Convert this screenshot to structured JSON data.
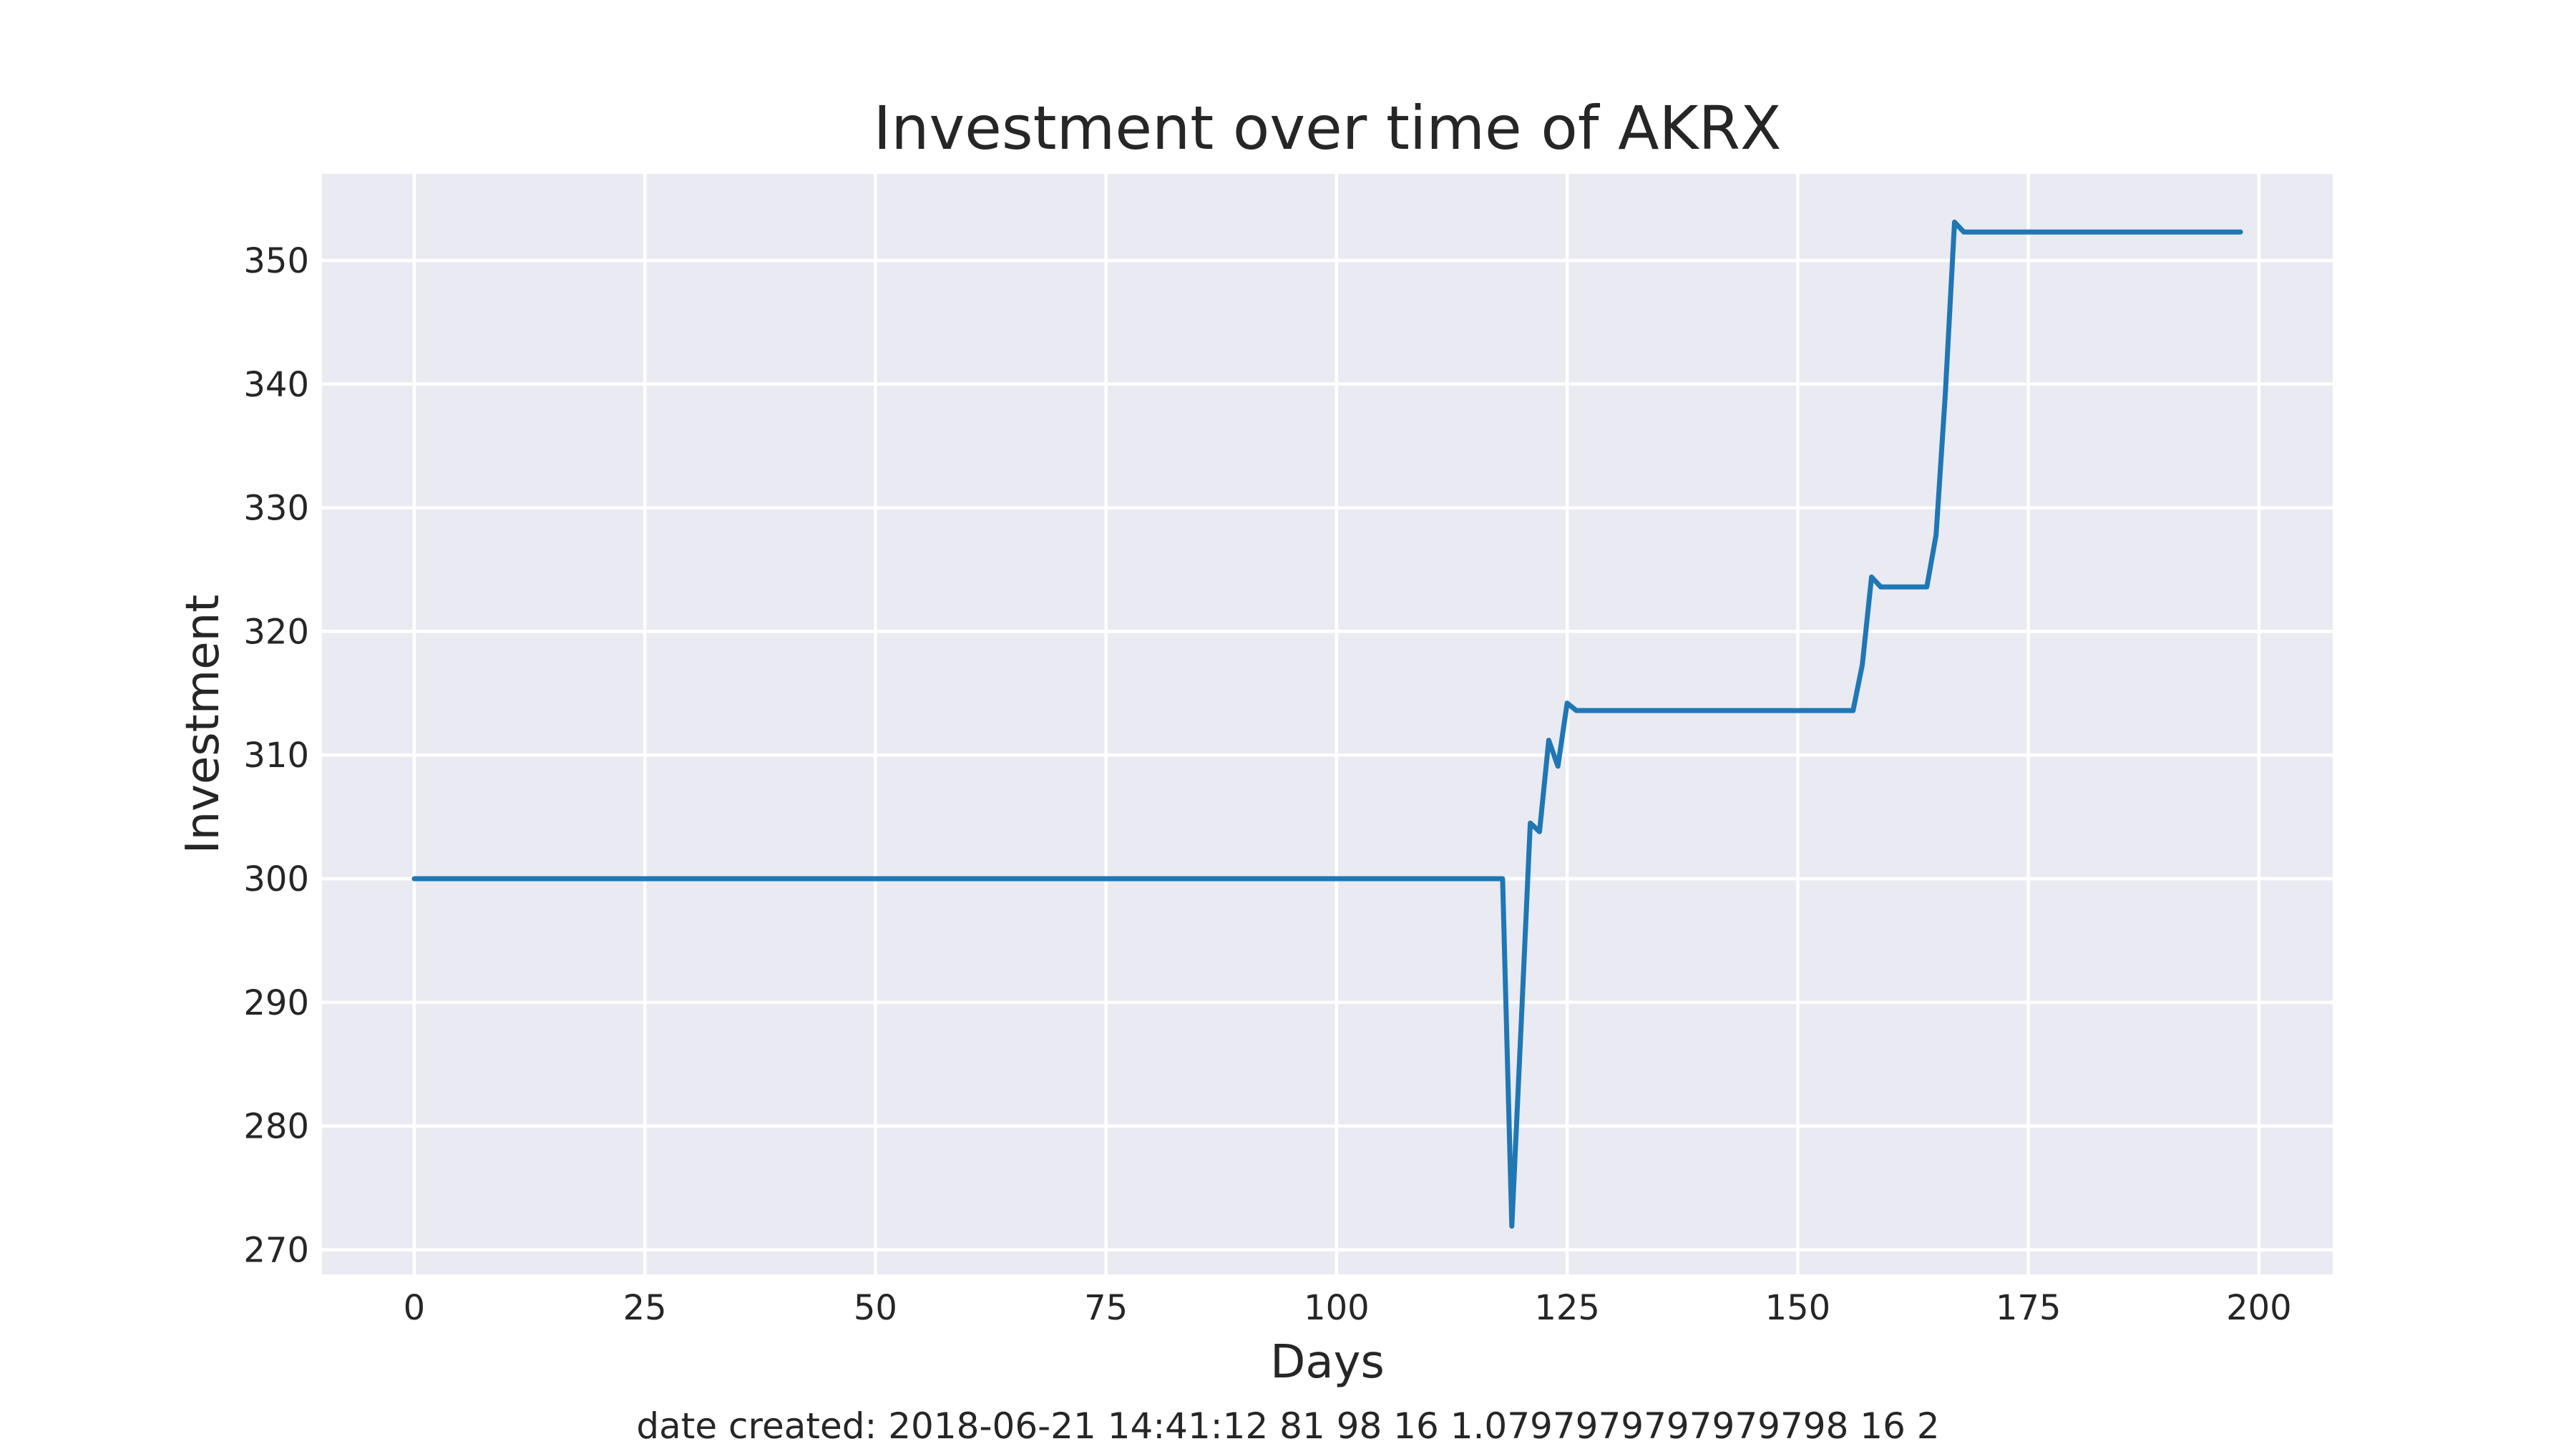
{
  "chart_data": {
    "type": "line",
    "title": "Investment over time of AKRX",
    "xlabel": "Days",
    "ylabel": "Investment",
    "xlim": [
      -10,
      208
    ],
    "ylim": [
      268,
      357
    ],
    "xticks": [
      0,
      25,
      50,
      75,
      100,
      125,
      150,
      175,
      200
    ],
    "yticks": [
      270,
      280,
      290,
      300,
      310,
      320,
      330,
      340,
      350
    ],
    "grid": true,
    "legend": "none",
    "series": [
      {
        "color": "#1f77b4",
        "x": [
          0,
          118,
          119,
          120,
          121,
          122,
          123,
          124,
          125,
          126,
          127,
          156,
          157,
          158,
          159,
          160,
          164,
          165,
          166,
          167,
          168,
          198
        ],
        "y": [
          300,
          300,
          271.9,
          288,
          304.5,
          303.8,
          311.2,
          309.1,
          314.2,
          313.6,
          313.6,
          313.6,
          317.3,
          324.4,
          323.6,
          323.6,
          323.6,
          327.8,
          339.2,
          353.1,
          352.3,
          352.3
        ]
      }
    ]
  },
  "footer": "date created: 2018-06-21 14:41:12 81 98 16 1.0797979797979798 16 2"
}
